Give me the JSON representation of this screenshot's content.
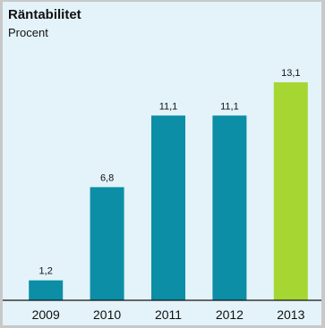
{
  "chart_data": {
    "type": "bar",
    "title": "Räntabilitet",
    "subtitle": "Procent",
    "categories": [
      "2009",
      "2010",
      "2011",
      "2012",
      "2013"
    ],
    "values": [
      1.2,
      6.8,
      11.1,
      11.1,
      13.1
    ],
    "value_labels": [
      "1,2",
      "6,8",
      "11,1",
      "11,1",
      "13,1"
    ],
    "ylim": [
      0,
      14
    ],
    "grid": false,
    "colors": {
      "default_bar": "#0b8ea6",
      "highlight_bar": "#a6d631",
      "baseline": "#111111",
      "background": "#e3f3f9"
    },
    "highlight_index": 4
  }
}
